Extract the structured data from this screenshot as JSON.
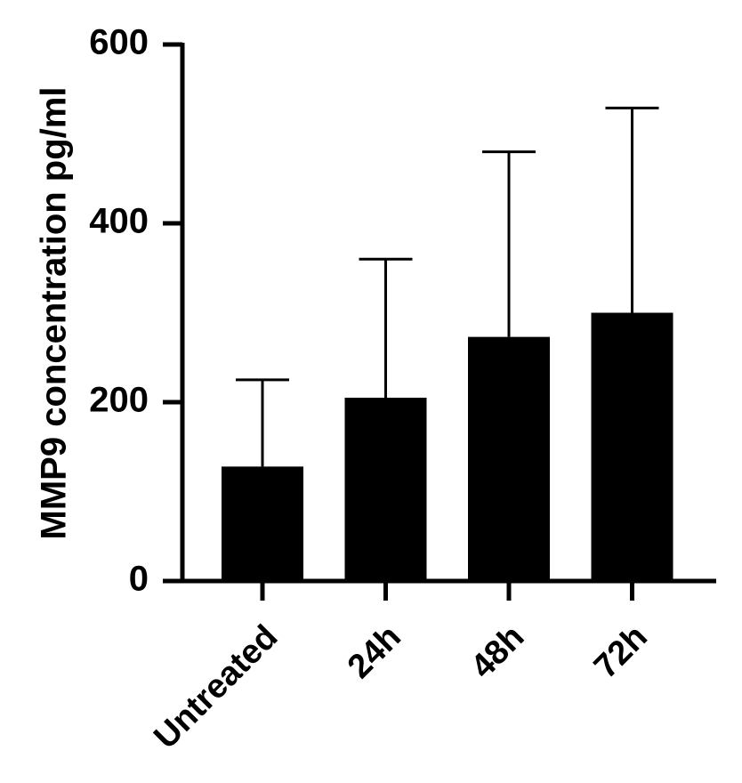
{
  "chart_data": {
    "type": "bar",
    "y_label": "MMP9 concentration pg/ml",
    "categories": [
      "Untreated",
      "24h",
      "48h",
      "72h"
    ],
    "values": [
      128,
      205,
      273,
      300
    ],
    "errors": [
      97,
      155,
      207,
      229
    ],
    "color": "#000000",
    "ylim": [
      0,
      600
    ],
    "yticks": [
      0,
      200,
      400,
      600
    ]
  }
}
